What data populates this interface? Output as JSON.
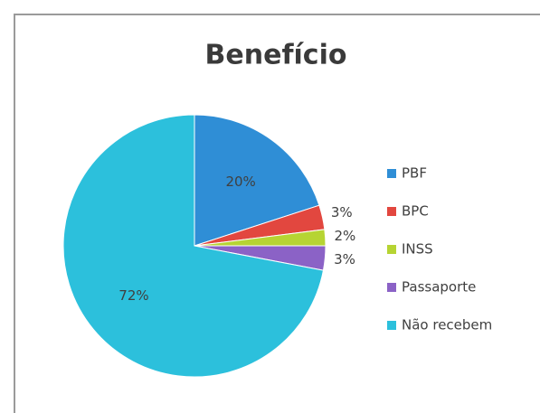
{
  "chart_data": {
    "type": "pie",
    "title": "Benefício",
    "categories": [
      "PBF",
      "BPC",
      "INSS",
      "Passaporte",
      "Não recebem"
    ],
    "values": [
      20,
      3,
      2,
      3,
      72
    ],
    "value_labels": [
      "20%",
      "3%",
      "2%",
      "3%",
      "72%"
    ],
    "colors": [
      "#2f8ed6",
      "#e2473f",
      "#b6d433",
      "#8b62c6",
      "#2cc0dc"
    ],
    "legend": "right"
  }
}
